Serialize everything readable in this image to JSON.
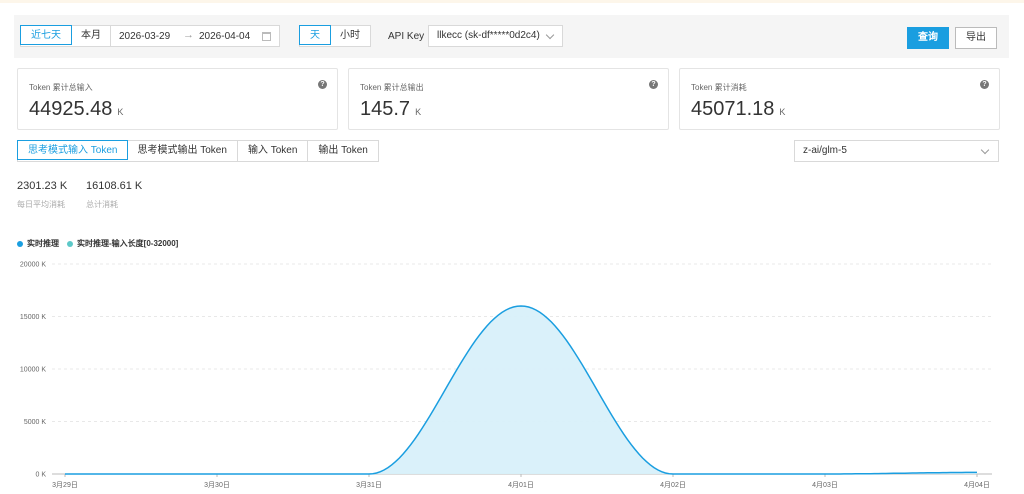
{
  "toolbar": {
    "range_presets": [
      "近七天",
      "本月"
    ],
    "range_presets_active": 0,
    "date_start": "2026-03-29",
    "date_end": "2026-04-04",
    "granularity": [
      "天",
      "小时"
    ],
    "granularity_active": 0,
    "api_key_label": "API Key",
    "api_key_value": "llkecc (sk-df*****0d2c4)",
    "query_label": "查询",
    "export_label": "导出"
  },
  "cards": [
    {
      "title": "Token 累计总输入",
      "value": "44925.48",
      "unit": "K"
    },
    {
      "title": "Token 累计总输出",
      "value": "145.7",
      "unit": "K"
    },
    {
      "title": "Token 累计消耗",
      "value": "45071.18",
      "unit": "K"
    }
  ],
  "tabs": [
    "思考模式输入 Token",
    "思考模式输出 Token",
    "输入 Token",
    "输出 Token"
  ],
  "tabs_active": 0,
  "model_value": "z-ai/glm-5",
  "stats": [
    {
      "value": "2301.23 K",
      "label": "每日平均消耗"
    },
    {
      "value": "16108.61 K",
      "label": "总计消耗"
    }
  ],
  "colors": {
    "accent": "#1a9ee0",
    "series1": "#1a9ee0",
    "series2": "#5cc8c8",
    "area_fill": "#d8f0fa"
  },
  "chart_data": {
    "type": "area",
    "legend": [
      {
        "name": "实时推理",
        "color": "#1a9ee0"
      },
      {
        "name": "实时推理-输入长度[0-32000]",
        "color": "#5cc8c8"
      }
    ],
    "categories": [
      "3月29日",
      "3月30日",
      "3月31日",
      "4月01日",
      "4月02日",
      "4月03日",
      "4月04日"
    ],
    "y_ticks": [
      "0 K",
      "5000 K",
      "10000 K",
      "15000 K",
      "20000 K"
    ],
    "ylim": [
      0,
      20000
    ],
    "series": [
      {
        "name": "实时推理",
        "values": [
          0,
          0,
          0,
          16000,
          0,
          0,
          150
        ]
      }
    ],
    "grid": true,
    "legend_position": "top-left"
  }
}
